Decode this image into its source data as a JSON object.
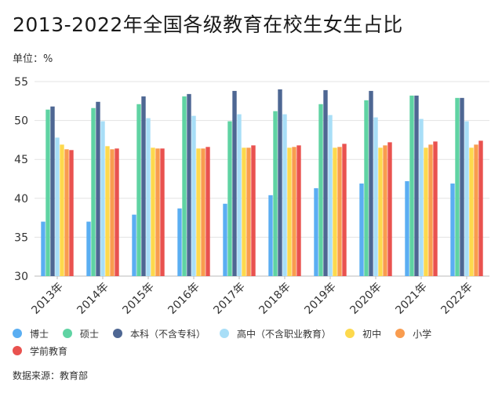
{
  "title": "2013-2022年全国各级教育在校生女生占比",
  "unit_label": "单位：%",
  "source": "数据来源：教育部",
  "chart_data": {
    "type": "bar",
    "title": "2013-2022年全国各级教育在校生女生占比",
    "ylabel": "单位：%",
    "xlabel": "",
    "ylim": [
      30,
      55
    ],
    "yticks": [
      30,
      35,
      40,
      45,
      50,
      55
    ],
    "grid": true,
    "legend_position": "bottom",
    "categories": [
      "2013年",
      "2014年",
      "2015年",
      "2016年",
      "2017年",
      "2018年",
      "2019年",
      "2020年",
      "2021年",
      "2022年"
    ],
    "series": [
      {
        "name": "博士",
        "color": "#5aaef2",
        "values": [
          37.0,
          37.0,
          37.9,
          38.7,
          39.3,
          40.4,
          41.3,
          41.9,
          42.2,
          41.9
        ]
      },
      {
        "name": "硕士",
        "color": "#5fd3a3",
        "values": [
          51.4,
          51.6,
          52.1,
          53.1,
          49.9,
          51.2,
          52.1,
          52.6,
          53.2,
          52.9
        ]
      },
      {
        "name": "本科（不含专科）",
        "color": "#4e6793",
        "values": [
          51.8,
          52.4,
          53.1,
          53.4,
          53.8,
          54.0,
          53.9,
          53.8,
          53.2,
          52.9
        ]
      },
      {
        "name": "高中（不含职业教育）",
        "color": "#a8def7",
        "values": [
          47.8,
          49.9,
          50.3,
          50.6,
          50.8,
          50.8,
          50.7,
          50.4,
          50.2,
          49.9
        ]
      },
      {
        "name": "初中",
        "color": "#fdd94d",
        "values": [
          46.9,
          46.7,
          46.5,
          46.4,
          46.5,
          46.5,
          46.5,
          46.5,
          46.5,
          46.5
        ]
      },
      {
        "name": "小学",
        "color": "#f99c4f",
        "values": [
          46.3,
          46.3,
          46.4,
          46.4,
          46.5,
          46.6,
          46.6,
          46.8,
          46.9,
          46.9
        ]
      },
      {
        "name": "学前教育",
        "color": "#e9524f",
        "values": [
          46.2,
          46.4,
          46.4,
          46.6,
          46.8,
          46.8,
          47.0,
          47.2,
          47.3,
          47.4
        ]
      }
    ]
  }
}
